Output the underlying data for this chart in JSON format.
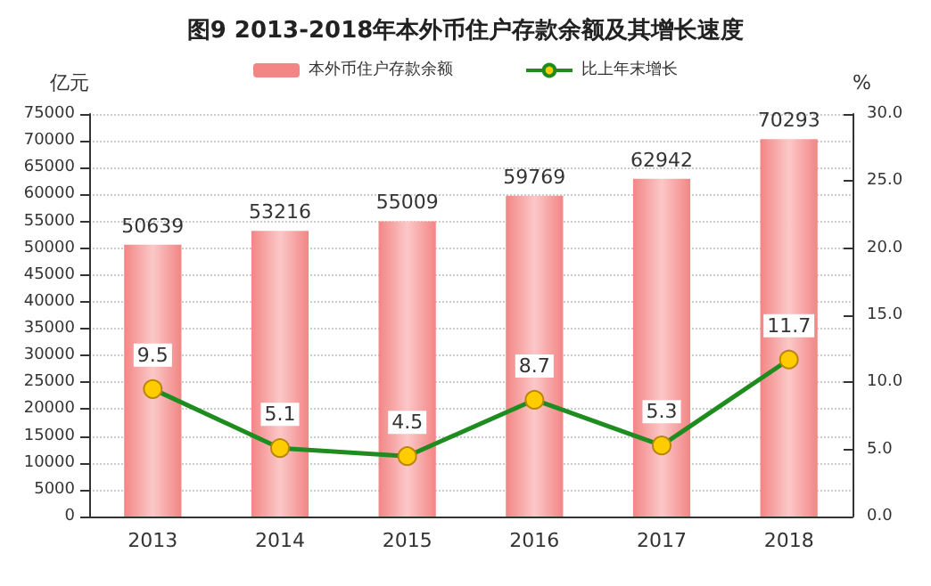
{
  "chart_data": {
    "type": "bar",
    "title": "图9 2013-2018年本外币住户存款余额及其增长速度",
    "ylabel": "亿元",
    "y2label": "%",
    "categories": [
      "2013",
      "2014",
      "2015",
      "2016",
      "2017",
      "2018"
    ],
    "series": [
      {
        "name": "本外币住户存款余额",
        "color": "#f38585",
        "values": [
          50639,
          53216,
          55009,
          59769,
          62942,
          70293
        ]
      },
      {
        "name": "比上年末增长",
        "type": "line",
        "axis": "y2",
        "color": "#1e8c1e",
        "marker": "circle",
        "values": [
          9.5,
          5.1,
          4.5,
          8.7,
          5.3,
          11.7
        ]
      }
    ],
    "data_labels": true,
    "legend": "top",
    "grid": "y",
    "ylim": [
      0,
      75000
    ],
    "yticks": [
      0,
      5000,
      10000,
      15000,
      20000,
      25000,
      30000,
      35000,
      40000,
      45000,
      50000,
      55000,
      60000,
      65000,
      70000,
      75000
    ],
    "y2lim": [
      0,
      30
    ],
    "y2ticks": [
      {
        "value": 0,
        "label": "0.0"
      },
      {
        "value": 5,
        "label": "5.0"
      },
      {
        "value": 10,
        "label": "10.0"
      },
      {
        "value": 15,
        "label": "15.0"
      },
      {
        "value": 20,
        "label": "20.0"
      },
      {
        "value": 25,
        "label": "25.0"
      },
      {
        "value": 30,
        "label": "30.0"
      }
    ]
  }
}
